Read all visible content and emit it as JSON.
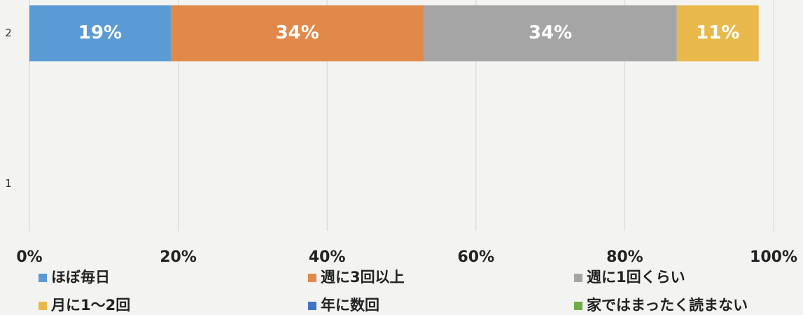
{
  "chart_data": {
    "type": "stacked_barh",
    "categories": [
      "2",
      "1"
    ],
    "series": [
      {
        "name": "ほぼ毎日",
        "color": "#5b9bd5",
        "values": [
          19,
          null
        ],
        "value_labels": [
          "19%",
          null
        ]
      },
      {
        "name": "週に3回以上",
        "color": "#e0894a",
        "values": [
          34,
          null
        ],
        "value_labels": [
          "34%",
          null
        ]
      },
      {
        "name": "週に1回くらい",
        "color": "#a5a5a5",
        "values": [
          34,
          null
        ],
        "value_labels": [
          "34%",
          null
        ]
      },
      {
        "name": "月に1〜2回",
        "color": "#e8b84a",
        "values": [
          11,
          null
        ],
        "value_labels": [
          "11%",
          null
        ]
      },
      {
        "name": "年に数回",
        "color": "#4472c4",
        "values": [
          0,
          null
        ]
      },
      {
        "name": "家ではまったく読まない",
        "color": "#70ad47",
        "values": [
          0,
          null
        ]
      }
    ],
    "xlim": [
      0,
      100
    ],
    "xticks": [
      {
        "value": 0,
        "label": "0%"
      },
      {
        "value": 20,
        "label": "20%"
      },
      {
        "value": 40,
        "label": "40%"
      },
      {
        "value": 60,
        "label": "60%"
      },
      {
        "value": 80,
        "label": "80%"
      },
      {
        "value": 100,
        "label": "100%"
      }
    ],
    "grid": true
  }
}
